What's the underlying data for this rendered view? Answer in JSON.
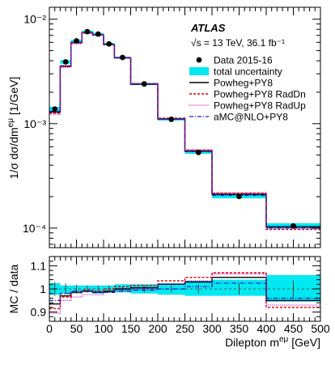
{
  "chart_data": [
    {
      "type": "line",
      "panel": "main",
      "atlas_label": "ATLAS",
      "energy_label": "√s = 13 TeV, 36.1 fb⁻¹",
      "ylabel": "1/σ dσ/dm^{eμ} [1/GeV]",
      "yscale": "log",
      "ylim": [
        6.5e-05,
        0.013
      ],
      "xlim": [
        0,
        500
      ],
      "y_ticks": [
        {
          "value": 0.0001,
          "label": "10⁻⁴"
        },
        {
          "value": 0.001,
          "label": "10⁻³"
        },
        {
          "value": 0.01,
          "label": "10⁻²"
        }
      ],
      "bin_edges": [
        0,
        20,
        40,
        60,
        80,
        100,
        120,
        150,
        200,
        250,
        300,
        400,
        500
      ],
      "legend_position": "top-right",
      "legend": [
        {
          "key": "data",
          "label": "Data 2015-16"
        },
        {
          "key": "unc",
          "label": "total uncertainty"
        },
        {
          "key": "powheg",
          "label": "Powheg+PY8"
        },
        {
          "key": "raddn",
          "label": "Powheg+PY8 RadDn"
        },
        {
          "key": "radup",
          "label": "Powheg+PY8 RadUp"
        },
        {
          "key": "amc",
          "label": "aMC@NLO+PY8"
        }
      ],
      "series": [
        {
          "name": "Data 2015-16",
          "values": [
            0.00138,
            0.0039,
            0.0062,
            0.0076,
            0.0072,
            0.0058,
            0.0043,
            0.0024,
            0.0011,
            0.00053,
            0.000201,
            0.000105
          ],
          "rel_unc": [
            0.05,
            0.04,
            0.03,
            0.025,
            0.025,
            0.025,
            0.02,
            0.025,
            0.025,
            0.03,
            0.04,
            0.06
          ]
        },
        {
          "name": "Powheg+PY8",
          "values": [
            0.00129,
            0.00355,
            0.00595,
            0.0074,
            0.00705,
            0.0057,
            0.00426,
            0.00238,
            0.00111,
            0.000546,
            0.000211,
            0.000103
          ]
        },
        {
          "name": "Powheg+PY8 RadDn",
          "values": [
            0.00126,
            0.00352,
            0.00595,
            0.00744,
            0.00708,
            0.00576,
            0.00429,
            0.00242,
            0.00113,
            0.000557,
            0.000215,
            9.7e-05
          ]
        },
        {
          "name": "Powheg+PY8 RadUp",
          "values": [
            0.00123,
            0.00345,
            0.00582,
            0.0073,
            0.00702,
            0.0057,
            0.00429,
            0.0024,
            0.00112,
            0.000562,
            0.000219,
            9.9e-05
          ]
        },
        {
          "name": "aMC@NLO+PY8",
          "values": [
            0.00131,
            0.00359,
            0.00601,
            0.00745,
            0.00708,
            0.00572,
            0.00426,
            0.00238,
            0.0011,
            0.000541,
            0.000206,
            0.000101
          ]
        }
      ]
    },
    {
      "type": "line",
      "panel": "ratio",
      "ylabel": "MC / data",
      "xlabel": "Dilepton m^{eμ} [GeV]",
      "ylim": [
        0.86,
        1.14
      ],
      "xlim": [
        0,
        500
      ],
      "y_ticks": [
        {
          "value": 0.9,
          "label": "0.9"
        },
        {
          "value": 1.0,
          "label": "1"
        },
        {
          "value": 1.1,
          "label": "1.1"
        }
      ],
      "x_ticks": [
        0,
        50,
        100,
        150,
        200,
        250,
        300,
        350,
        400,
        450,
        500
      ],
      "bin_edges": [
        0,
        20,
        40,
        60,
        80,
        100,
        120,
        150,
        200,
        250,
        300,
        400,
        500
      ],
      "uncertainty_band": {
        "lower": [
          0.975,
          0.98,
          0.98,
          0.985,
          0.98,
          0.985,
          0.985,
          0.98,
          0.975,
          0.97,
          0.97,
          0.945
        ],
        "upper": [
          1.025,
          1.015,
          1.015,
          1.015,
          1.015,
          1.015,
          1.02,
          1.02,
          1.025,
          1.035,
          1.04,
          1.06
        ]
      },
      "series": [
        {
          "name": "Powheg+PY8",
          "values": [
            0.935,
            0.97,
            0.985,
            0.99,
            0.985,
            0.99,
            1.0,
            1.005,
            1.02,
            1.03,
            1.05,
            0.95
          ]
        },
        {
          "name": "Powheg+PY8 RadDn",
          "values": [
            0.915,
            0.965,
            0.985,
            0.995,
            0.99,
            1.0,
            1.01,
            1.015,
            1.035,
            1.05,
            1.07,
            0.92
          ]
        },
        {
          "name": "Powheg+PY8 RadUp",
          "values": [
            0.895,
            0.95,
            0.965,
            0.975,
            0.975,
            0.985,
            0.995,
            1.0,
            1.02,
            1.035,
            1.065,
            0.93
          ]
        },
        {
          "name": "aMC@NLO+PY8",
          "values": [
            0.95,
            0.98,
            0.99,
            0.99,
            0.985,
            0.985,
            0.99,
            0.995,
            1.0,
            1.01,
            1.025,
            0.96
          ]
        }
      ],
      "reference_value": 1.0
    }
  ],
  "colors": {
    "data": "#000000",
    "unc": "#00e8f0",
    "powheg": "#000000",
    "raddn": "#e00000",
    "radup": "#d000d0",
    "amc": "#2020c0",
    "ref": "#606060"
  }
}
